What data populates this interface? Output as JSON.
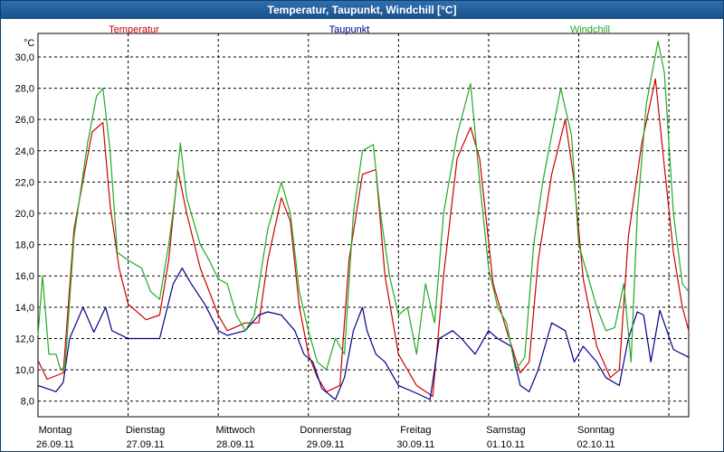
{
  "window": {
    "title": "Temperatur, Taupunkt, Windchill [°C]"
  },
  "chart_data": {
    "type": "line",
    "title": "Temperatur, Taupunkt, Windchill [°C]",
    "ylabel": "°C",
    "ylim": [
      7,
      31.5
    ],
    "xlim": [
      0,
      7.22
    ],
    "grid": true,
    "legend_position": "top",
    "y_ticks": [
      "8,0",
      "10,0",
      "12,0",
      "14,0",
      "16,0",
      "18,0",
      "20,0",
      "22,0",
      "24,0",
      "26,0",
      "28,0",
      "30,0"
    ],
    "y_tick_values": [
      8,
      10,
      12,
      14,
      16,
      18,
      20,
      22,
      24,
      26,
      28,
      30
    ],
    "x_ticks": [
      {
        "day": "Montag",
        "date": "26.09.11"
      },
      {
        "day": "Dienstag",
        "date": "27.09.11"
      },
      {
        "day": "Mittwoch",
        "date": "28.09.11"
      },
      {
        "day": "Donnerstag",
        "date": "29.09.11"
      },
      {
        "day": "Freitag",
        "date": "30.09.11"
      },
      {
        "day": "Samstag",
        "date": "01.10.11"
      },
      {
        "day": "Sonntag",
        "date": "02.10.11"
      }
    ],
    "series": [
      {
        "name": "Temperatur",
        "color": "#cc0000",
        "points": [
          [
            0,
            10.6
          ],
          [
            0.1,
            9.4
          ],
          [
            0.28,
            9.8
          ],
          [
            0.4,
            19
          ],
          [
            0.6,
            25.2
          ],
          [
            0.72,
            25.8
          ],
          [
            0.8,
            20.5
          ],
          [
            0.9,
            16.5
          ],
          [
            1,
            14.2
          ],
          [
            1.2,
            13.2
          ],
          [
            1.35,
            13.5
          ],
          [
            1.45,
            17
          ],
          [
            1.55,
            22.8
          ],
          [
            1.65,
            20
          ],
          [
            1.8,
            16.5
          ],
          [
            2,
            13.5
          ],
          [
            2.1,
            12.5
          ],
          [
            2.3,
            13
          ],
          [
            2.45,
            13
          ],
          [
            2.55,
            17
          ],
          [
            2.7,
            21
          ],
          [
            2.8,
            19.5
          ],
          [
            2.9,
            14
          ],
          [
            3,
            11
          ],
          [
            3.1,
            9.5
          ],
          [
            3.2,
            8.6
          ],
          [
            3.35,
            9
          ],
          [
            3.45,
            17
          ],
          [
            3.6,
            22.5
          ],
          [
            3.75,
            22.8
          ],
          [
            3.85,
            16
          ],
          [
            4,
            11
          ],
          [
            4.2,
            9
          ],
          [
            4.38,
            8.3
          ],
          [
            4.5,
            16
          ],
          [
            4.65,
            23.5
          ],
          [
            4.8,
            25.5
          ],
          [
            4.9,
            23.5
          ],
          [
            5.05,
            15.5
          ],
          [
            5.2,
            12.5
          ],
          [
            5.35,
            9.8
          ],
          [
            5.45,
            10.5
          ],
          [
            5.55,
            17
          ],
          [
            5.7,
            22.5
          ],
          [
            5.85,
            26
          ],
          [
            5.95,
            22
          ],
          [
            6.05,
            15.8
          ],
          [
            6.2,
            11.5
          ],
          [
            6.35,
            9.5
          ],
          [
            6.45,
            10
          ],
          [
            6.55,
            18.5
          ],
          [
            6.7,
            24.5
          ],
          [
            6.85,
            28.6
          ],
          [
            6.95,
            23
          ],
          [
            7.05,
            17.5
          ],
          [
            7.15,
            14
          ],
          [
            7.22,
            12.5
          ]
        ]
      },
      {
        "name": "Taupunkt",
        "color": "#00008b",
        "points": [
          [
            0,
            9
          ],
          [
            0.2,
            8.6
          ],
          [
            0.28,
            9.2
          ],
          [
            0.35,
            12
          ],
          [
            0.5,
            14
          ],
          [
            0.62,
            12.4
          ],
          [
            0.75,
            14
          ],
          [
            0.82,
            12.5
          ],
          [
            1,
            12
          ],
          [
            1.2,
            12
          ],
          [
            1.35,
            12
          ],
          [
            1.5,
            15.5
          ],
          [
            1.6,
            16.5
          ],
          [
            1.7,
            15.5
          ],
          [
            1.85,
            14.2
          ],
          [
            2,
            12.5
          ],
          [
            2.1,
            12.2
          ],
          [
            2.3,
            12.5
          ],
          [
            2.45,
            13.5
          ],
          [
            2.55,
            13.7
          ],
          [
            2.7,
            13.5
          ],
          [
            2.85,
            12.5
          ],
          [
            2.95,
            11
          ],
          [
            3.05,
            10.5
          ],
          [
            3.15,
            8.8
          ],
          [
            3.3,
            8.1
          ],
          [
            3.4,
            9.5
          ],
          [
            3.5,
            12.5
          ],
          [
            3.6,
            14
          ],
          [
            3.65,
            12.5
          ],
          [
            3.75,
            11
          ],
          [
            3.85,
            10.5
          ],
          [
            4,
            9
          ],
          [
            4.2,
            8.5
          ],
          [
            4.35,
            8.1
          ],
          [
            4.45,
            12
          ],
          [
            4.6,
            12.5
          ],
          [
            4.7,
            12
          ],
          [
            4.85,
            11
          ],
          [
            5,
            12.5
          ],
          [
            5.1,
            12
          ],
          [
            5.25,
            11.5
          ],
          [
            5.35,
            9
          ],
          [
            5.45,
            8.6
          ],
          [
            5.55,
            10
          ],
          [
            5.7,
            13
          ],
          [
            5.85,
            12.5
          ],
          [
            5.95,
            10.5
          ],
          [
            6.05,
            11.5
          ],
          [
            6.2,
            10.5
          ],
          [
            6.3,
            9.5
          ],
          [
            6.45,
            9
          ],
          [
            6.55,
            12
          ],
          [
            6.65,
            13.7
          ],
          [
            6.72,
            13.5
          ],
          [
            6.8,
            10.5
          ],
          [
            6.9,
            13.8
          ],
          [
            7.05,
            11.3
          ],
          [
            7.22,
            10.8
          ]
        ]
      },
      {
        "name": "Windchill",
        "color": "#22aa22",
        "points": [
          [
            0,
            12.2
          ],
          [
            0.05,
            16
          ],
          [
            0.12,
            11
          ],
          [
            0.2,
            11
          ],
          [
            0.25,
            10
          ],
          [
            0.3,
            10.2
          ],
          [
            0.4,
            18.5
          ],
          [
            0.55,
            24.5
          ],
          [
            0.65,
            27.5
          ],
          [
            0.72,
            28
          ],
          [
            0.8,
            24
          ],
          [
            0.88,
            17.5
          ],
          [
            1,
            17
          ],
          [
            1.15,
            16.5
          ],
          [
            1.25,
            15
          ],
          [
            1.35,
            14.5
          ],
          [
            1.45,
            18
          ],
          [
            1.52,
            21
          ],
          [
            1.58,
            24.5
          ],
          [
            1.65,
            21
          ],
          [
            1.8,
            18
          ],
          [
            1.9,
            17
          ],
          [
            2,
            15.8
          ],
          [
            2.1,
            15.5
          ],
          [
            2.2,
            13.5
          ],
          [
            2.3,
            12.5
          ],
          [
            2.4,
            13.5
          ],
          [
            2.55,
            19
          ],
          [
            2.7,
            22
          ],
          [
            2.8,
            20
          ],
          [
            2.9,
            15
          ],
          [
            3,
            12.5
          ],
          [
            3.1,
            10.5
          ],
          [
            3.2,
            10
          ],
          [
            3.3,
            12
          ],
          [
            3.4,
            11
          ],
          [
            3.5,
            20
          ],
          [
            3.6,
            24
          ],
          [
            3.72,
            24.4
          ],
          [
            3.8,
            20
          ],
          [
            3.9,
            16
          ],
          [
            4,
            13.5
          ],
          [
            4.1,
            14
          ],
          [
            4.2,
            11
          ],
          [
            4.3,
            15.5
          ],
          [
            4.4,
            13
          ],
          [
            4.5,
            20
          ],
          [
            4.65,
            25
          ],
          [
            4.8,
            28.3
          ],
          [
            4.9,
            22
          ],
          [
            5,
            16.5
          ],
          [
            5.1,
            14
          ],
          [
            5.2,
            13
          ],
          [
            5.3,
            10
          ],
          [
            5.4,
            10.8
          ],
          [
            5.5,
            18
          ],
          [
            5.6,
            22
          ],
          [
            5.7,
            25
          ],
          [
            5.8,
            28
          ],
          [
            5.92,
            25
          ],
          [
            6,
            18
          ],
          [
            6.1,
            16
          ],
          [
            6.2,
            14
          ],
          [
            6.3,
            12.5
          ],
          [
            6.4,
            12.7
          ],
          [
            6.5,
            15.5
          ],
          [
            6.58,
            10.5
          ],
          [
            6.65,
            20
          ],
          [
            6.75,
            27
          ],
          [
            6.88,
            31
          ],
          [
            6.95,
            29
          ],
          [
            7.05,
            20
          ],
          [
            7.15,
            15.5
          ],
          [
            7.22,
            15
          ]
        ]
      }
    ]
  }
}
